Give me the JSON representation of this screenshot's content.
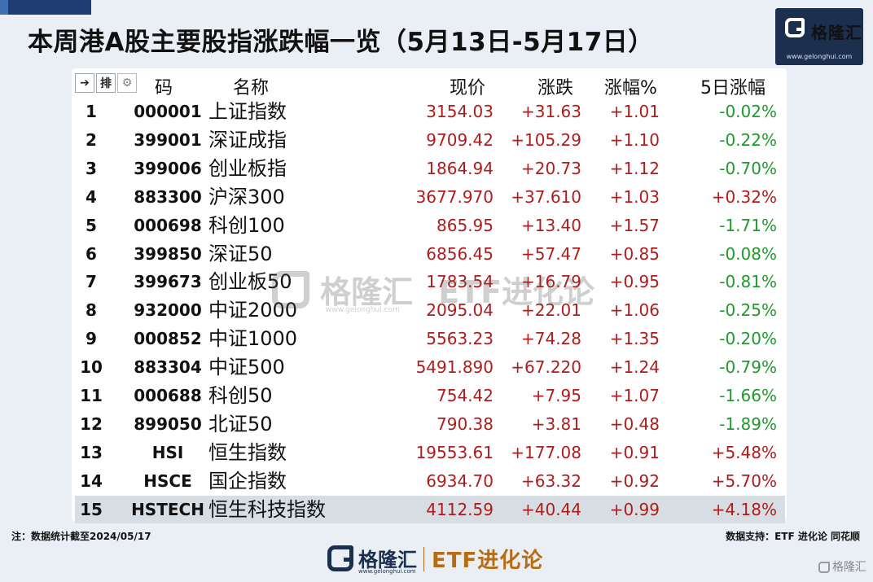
{
  "title": "本周港A股主要股指涨跌幅一览（5月13日-5月17日）",
  "logo": {
    "name": "格隆汇",
    "url": "www.gelonghui.com"
  },
  "toolbar": {
    "icons": [
      "arrow-in-icon",
      "sort-icon",
      "gear-icon"
    ],
    "code_header_tail": "码"
  },
  "headers": {
    "name": "名称",
    "price": "现价",
    "change": "涨跌",
    "change_pct": "涨幅%",
    "five_day": "5日涨幅"
  },
  "rows": [
    {
      "idx": "1",
      "code": "000001",
      "name": "上证指数",
      "price": "3154.03",
      "change": "+31.63",
      "pct": "+1.01",
      "five": "-0.02%"
    },
    {
      "idx": "2",
      "code": "399001",
      "name": "深证成指",
      "price": "9709.42",
      "change": "+105.29",
      "pct": "+1.10",
      "five": "-0.22%"
    },
    {
      "idx": "3",
      "code": "399006",
      "name": "创业板指",
      "price": "1864.94",
      "change": "+20.73",
      "pct": "+1.12",
      "five": "-0.70%"
    },
    {
      "idx": "4",
      "code": "883300",
      "name": "沪深300",
      "price": "3677.970",
      "change": "+37.610",
      "pct": "+1.03",
      "five": "+0.32%"
    },
    {
      "idx": "5",
      "code": "000698",
      "name": "科创100",
      "price": "865.95",
      "change": "+13.40",
      "pct": "+1.57",
      "five": "-1.71%"
    },
    {
      "idx": "6",
      "code": "399850",
      "name": "深证50",
      "price": "6856.45",
      "change": "+57.47",
      "pct": "+0.85",
      "five": "-0.08%"
    },
    {
      "idx": "7",
      "code": "399673",
      "name": "创业板50",
      "price": "1783.54",
      "change": "+16.79",
      "pct": "+0.95",
      "five": "-0.81%"
    },
    {
      "idx": "8",
      "code": "932000",
      "name": "中证2000",
      "price": "2095.04",
      "change": "+22.01",
      "pct": "+1.06",
      "five": "-0.25%"
    },
    {
      "idx": "9",
      "code": "000852",
      "name": "中证1000",
      "price": "5563.23",
      "change": "+74.28",
      "pct": "+1.35",
      "five": "-0.20%"
    },
    {
      "idx": "10",
      "code": "883304",
      "name": "中证500",
      "price": "5491.890",
      "change": "+67.220",
      "pct": "+1.24",
      "five": "-0.79%"
    },
    {
      "idx": "11",
      "code": "000688",
      "name": "科创50",
      "price": "754.42",
      "change": "+7.95",
      "pct": "+1.07",
      "five": "-1.66%"
    },
    {
      "idx": "12",
      "code": "899050",
      "name": "北证50",
      "price": "790.38",
      "change": "+3.81",
      "pct": "+0.48",
      "five": "-1.89%"
    },
    {
      "idx": "13",
      "code": "HSI",
      "name": "恒生指数",
      "price": "19553.61",
      "change": "+177.08",
      "pct": "+0.91",
      "five": "+5.48%"
    },
    {
      "idx": "14",
      "code": "HSCE",
      "name": "国企指数",
      "price": "6934.70",
      "change": "+63.32",
      "pct": "+0.92",
      "five": "+5.70%"
    },
    {
      "idx": "15",
      "code": "HSTECH",
      "name": "恒生科技指数",
      "price": "4112.59",
      "change": "+40.44",
      "pct": "+0.99",
      "five": "+4.18%"
    }
  ],
  "selected_row_index": 14,
  "colors": {
    "up": "#b01c1c",
    "down": "#1f9a2c",
    "brand": "#1c2f4f",
    "etf": "#b86c12"
  },
  "watermark": {
    "name": "格隆汇",
    "url": "www.gelonghui.com",
    "etf": "ETF进化论"
  },
  "notes": {
    "left": "注：数据统计截至2024/05/17",
    "right": "数据支持：ETF 进化论 同花顺"
  },
  "footer": {
    "name": "格隆汇",
    "url": "www.gelonghui.com",
    "etf": "ETF进化论"
  },
  "corner_mark": "格隆汇"
}
